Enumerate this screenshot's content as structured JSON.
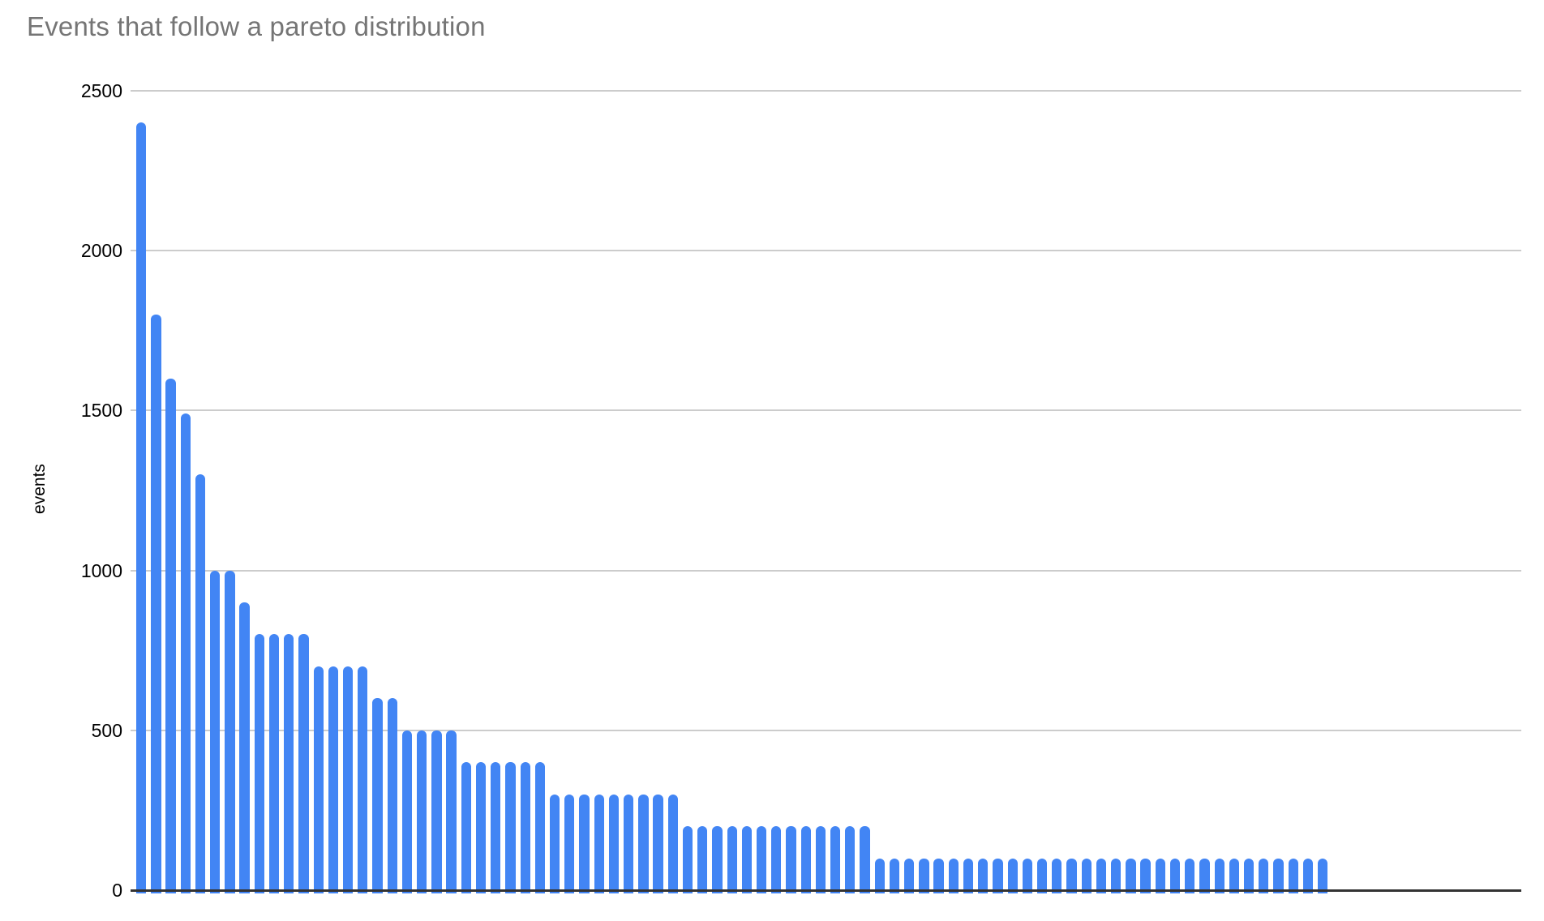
{
  "chart": {
    "title": "Events that follow a pareto distribution",
    "y_axis_title": "events"
  },
  "colors": {
    "bar": "#4285f4",
    "title_text": "#757575",
    "tick_label_text": "#000000",
    "gridline": "#cccccc",
    "axis_line": "#333333",
    "background": "#ffffff"
  },
  "chart_data": {
    "type": "bar",
    "title": "Events that follow a pareto distribution",
    "xlabel": "",
    "ylabel": "events",
    "x_tick_labels": [],
    "ylim": [
      0,
      2500
    ],
    "yticks": [
      0,
      500,
      1000,
      1500,
      2000,
      2500
    ],
    "grid": true,
    "legend": false,
    "bar_color": "#4285f4",
    "values": [
      2400,
      1800,
      1600,
      1490,
      1300,
      1000,
      1000,
      900,
      800,
      800,
      800,
      800,
      700,
      700,
      700,
      700,
      600,
      600,
      500,
      500,
      500,
      500,
      400,
      400,
      400,
      400,
      400,
      400,
      300,
      300,
      300,
      300,
      300,
      300,
      300,
      300,
      300,
      200,
      200,
      200,
      200,
      200,
      200,
      200,
      200,
      200,
      200,
      200,
      200,
      200,
      100,
      100,
      100,
      100,
      100,
      100,
      100,
      100,
      100,
      100,
      100,
      100,
      100,
      100,
      100,
      100,
      100,
      100,
      100,
      100,
      100,
      100,
      100,
      100,
      100,
      100,
      100,
      100,
      100,
      100,
      100
    ]
  }
}
